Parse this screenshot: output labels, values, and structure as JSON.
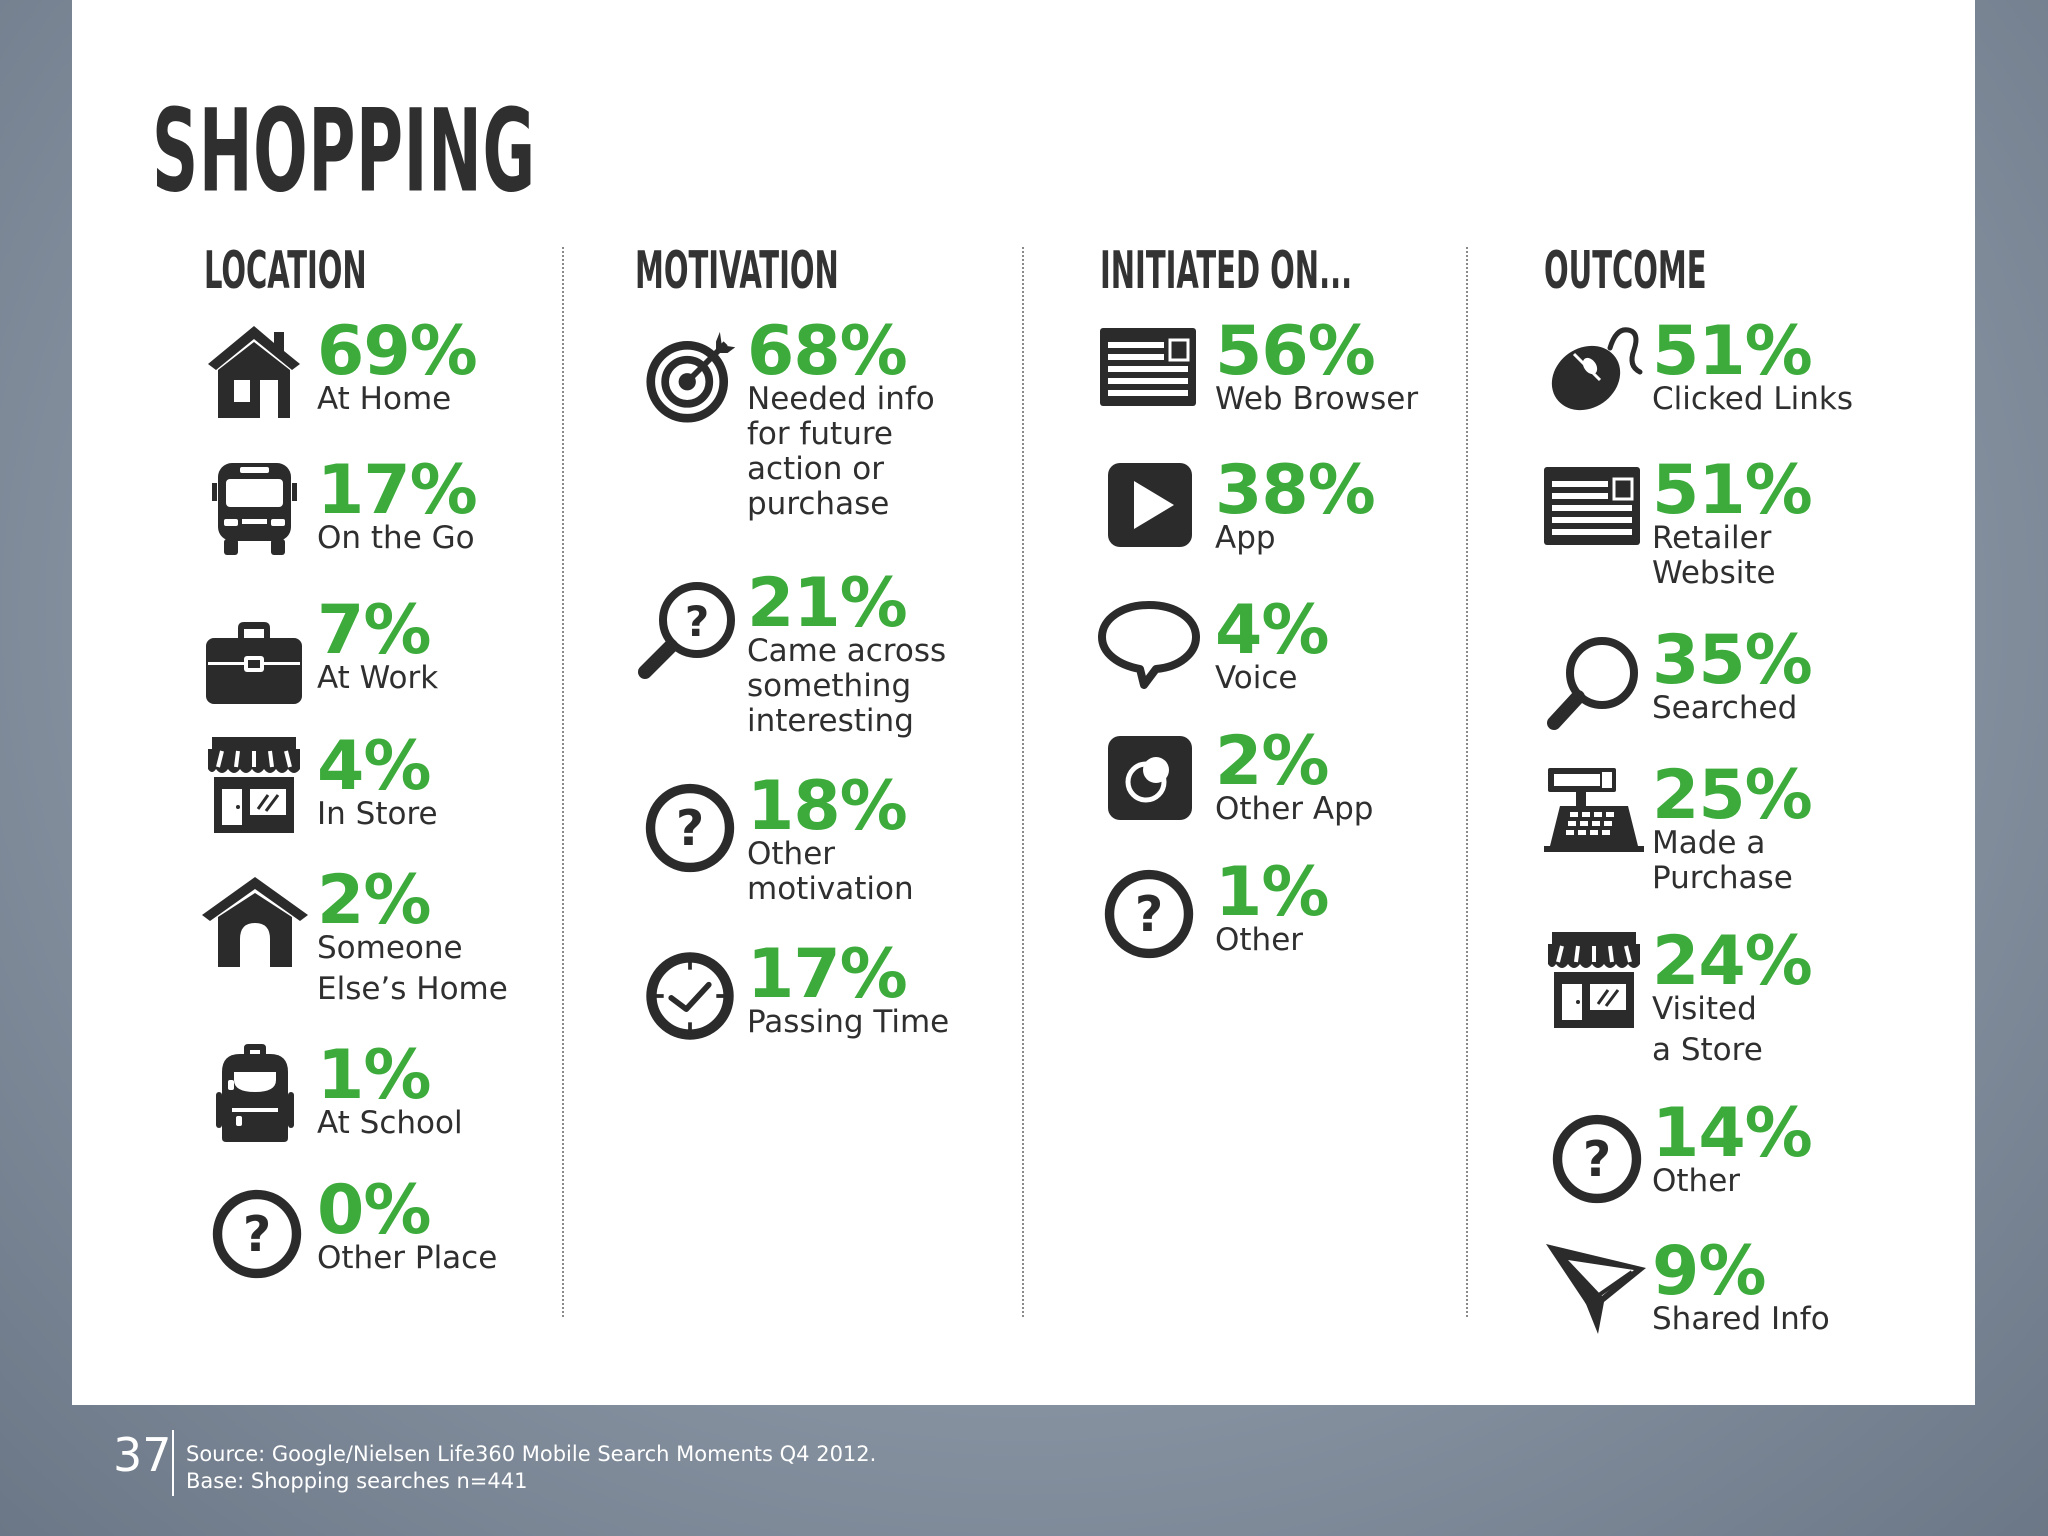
{
  "title": "SHOPPING",
  "columns": [
    {
      "heading": "LOCATION",
      "items": [
        {
          "value": "69%",
          "lines": [
            "At Home"
          ],
          "icon": "house-icon"
        },
        {
          "value": "17%",
          "lines": [
            "On the Go"
          ],
          "icon": "bus-icon"
        },
        {
          "value": "7%",
          "lines": [
            "At Work"
          ],
          "icon": "briefcase-icon"
        },
        {
          "value": "4%",
          "lines": [
            "In Store"
          ],
          "icon": "storefront-icon"
        },
        {
          "value": "2%",
          "lines": [
            "Someone",
            "Else’s Home"
          ],
          "icon": "doghouse-icon"
        },
        {
          "value": "1%",
          "lines": [
            "At School"
          ],
          "icon": "backpack-icon"
        },
        {
          "value": "0%",
          "lines": [
            "Other Place"
          ],
          "icon": "question-icon"
        }
      ]
    },
    {
      "heading": "MOTIVATION",
      "items": [
        {
          "value": "68%",
          "lines": [
            "Needed info",
            "for future",
            "action or",
            "purchase"
          ],
          "icon": "target-icon"
        },
        {
          "value": "21%",
          "lines": [
            "Came across",
            "something",
            "interesting"
          ],
          "icon": "magnifier-question-icon"
        },
        {
          "value": "18%",
          "lines": [
            "Other",
            "motivation"
          ],
          "icon": "question-icon"
        },
        {
          "value": "17%",
          "lines": [
            "Passing Time"
          ],
          "icon": "clock-icon"
        }
      ]
    },
    {
      "heading": "INITIATED ON...",
      "items": [
        {
          "value": "56%",
          "lines": [
            "Web Browser"
          ],
          "icon": "web-page-icon"
        },
        {
          "value": "38%",
          "lines": [
            "App"
          ],
          "icon": "play-icon"
        },
        {
          "value": "4%",
          "lines": [
            "Voice"
          ],
          "icon": "speech-bubble-icon"
        },
        {
          "value": "2%",
          "lines": [
            "Other App"
          ],
          "icon": "app-icon"
        },
        {
          "value": "1%",
          "lines": [
            "Other"
          ],
          "icon": "question-icon"
        }
      ]
    },
    {
      "heading": "OUTCOME",
      "items": [
        {
          "value": "51%",
          "lines": [
            "Clicked Links"
          ],
          "icon": "mouse-icon"
        },
        {
          "value": "51%",
          "lines": [
            "Retailer",
            "Website"
          ],
          "icon": "web-page-icon"
        },
        {
          "value": "35%",
          "lines": [
            "Searched"
          ],
          "icon": "magnifier-icon"
        },
        {
          "value": "25%",
          "lines": [
            "Made a",
            "Purchase"
          ],
          "icon": "cash-register-icon"
        },
        {
          "value": "24%",
          "lines": [
            "Visited",
            "a Store"
          ],
          "icon": "storefront-icon"
        },
        {
          "value": "14%",
          "lines": [
            "Other"
          ],
          "icon": "question-icon"
        },
        {
          "value": "9%",
          "lines": [
            "Shared Info"
          ],
          "icon": "paper-plane-icon"
        }
      ]
    }
  ],
  "footer": {
    "page_number": "37",
    "source": "Source: Google/Nielsen Life360 Mobile Search Moments Q4 2012.",
    "base": "Base: Shopping searches n=441"
  },
  "colors": {
    "accent": "#3cab3c",
    "text": "#2f2f2f",
    "icon": "#2b2b2b"
  }
}
